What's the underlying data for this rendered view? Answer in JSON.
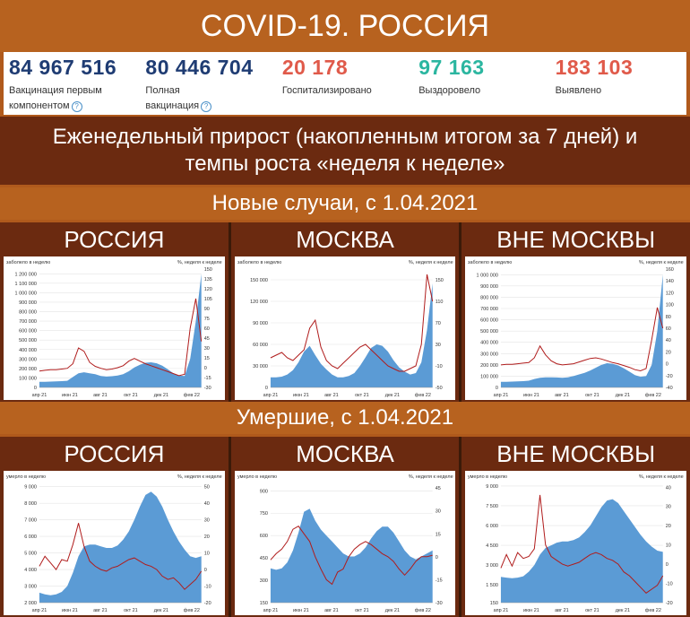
{
  "header": {
    "title": "COVID-19. РОССИЯ"
  },
  "stats": [
    {
      "value": "84 967 516",
      "label1": "Вакцинация первым",
      "label2": "компонентом",
      "help": true,
      "color": "#1f3c73"
    },
    {
      "value": "80 446 704",
      "label1": "Полная",
      "label2": "вакцинация",
      "help": true,
      "color": "#1f3c73"
    },
    {
      "value": "20 178",
      "label1": "Госпитализировано",
      "label2": "",
      "help": false,
      "color": "#e05a4a"
    },
    {
      "value": "97 163",
      "label1": "Выздоровело",
      "label2": "",
      "help": false,
      "color": "#2bb6a0"
    },
    {
      "value": "183 103",
      "label1": "Выявлено",
      "label2": "",
      "help": false,
      "color": "#e05a4a"
    }
  ],
  "weekly_title": "Еженедельный прирост (накопленным итогом за 7 дней) и темпы роста «неделя к неделе»",
  "section_cases": "Новые случаи, с 1.04.2021",
  "section_deaths": "Умершие, с 1.04.2021",
  "regions": [
    "РОССИЯ",
    "МОСКВА",
    "ВНЕ МОСКВЫ"
  ],
  "months": [
    "апр 21",
    "июн 21",
    "авг 21",
    "окт 21",
    "дек 21",
    "фев 22"
  ],
  "right_label": "%, неделя к неделе",
  "colors": {
    "area": "#5b9bd5",
    "line": "#b01c1c"
  },
  "chart_data": [
    {
      "type": "area",
      "title": "РОССИЯ — новые случаи",
      "ylabel": "заболело в неделю",
      "y2label": "%, неделя к неделе",
      "yticks": [
        "0",
        "100 000",
        "200 000",
        "300 000",
        "400 000",
        "500 000",
        "600 000",
        "700 000",
        "800 000",
        "900 000",
        "1 000 000",
        "1 100 000",
        "1 200 000"
      ],
      "ylim": [
        0,
        1250000
      ],
      "y2ticks": [
        "-30",
        "-15",
        "0",
        "15",
        "30",
        "45",
        "60",
        "75",
        "90",
        "105",
        "120",
        "135",
        "150"
      ],
      "y2lim": [
        -30,
        150
      ],
      "area": [
        60000,
        60000,
        62000,
        64000,
        66000,
        70000,
        110000,
        150000,
        160000,
        150000,
        140000,
        120000,
        115000,
        118000,
        125000,
        140000,
        170000,
        210000,
        240000,
        260000,
        265000,
        255000,
        230000,
        190000,
        150000,
        125000,
        120000,
        300000,
        700000,
        1200000
      ],
      "line": [
        -5,
        -4,
        -3,
        -3,
        -2,
        -1,
        6,
        30,
        25,
        8,
        2,
        -1,
        -3,
        -2,
        0,
        3,
        10,
        14,
        10,
        6,
        3,
        0,
        -3,
        -6,
        -9,
        -12,
        -10,
        60,
        105,
        40
      ]
    },
    {
      "type": "area",
      "title": "МОСКВА — новые случаи",
      "ylabel": "заболело в неделю",
      "y2label": "%, неделя к неделе",
      "yticks": [
        "0",
        "30 000",
        "60 000",
        "90 000",
        "120 000",
        "150 000"
      ],
      "ylim": [
        0,
        165000
      ],
      "y2ticks": [
        "-50",
        "-10",
        "30",
        "70",
        "110",
        "150"
      ],
      "y2lim": [
        -50,
        170
      ],
      "area": [
        14000,
        14000,
        15000,
        18000,
        24000,
        35000,
        50000,
        58000,
        45000,
        33000,
        25000,
        18000,
        14000,
        14000,
        16000,
        20000,
        30000,
        42000,
        55000,
        60000,
        58000,
        50000,
        38000,
        28000,
        22000,
        18000,
        20000,
        35000,
        80000,
        145000
      ],
      "line": [
        5,
        10,
        15,
        5,
        0,
        10,
        20,
        60,
        75,
        25,
        0,
        -10,
        -15,
        -5,
        5,
        15,
        25,
        30,
        20,
        10,
        0,
        -10,
        -15,
        -20,
        -20,
        -15,
        -10,
        30,
        160,
        110
      ]
    },
    {
      "type": "area",
      "title": "ВНЕ МОСКВЫ — новые случаи",
      "ylabel": "заболело в неделю",
      "y2label": "%, неделя к неделе",
      "yticks": [
        "0",
        "100 000",
        "200 000",
        "300 000",
        "400 000",
        "500 000",
        "600 000",
        "700 000",
        "800 000",
        "900 000",
        "1 000 000"
      ],
      "ylim": [
        0,
        1050000
      ],
      "y2ticks": [
        "-40",
        "-20",
        "0",
        "20",
        "40",
        "60",
        "80",
        "100",
        "120",
        "140",
        "160"
      ],
      "y2lim": [
        -40,
        160
      ],
      "area": [
        50000,
        50000,
        52000,
        54000,
        56000,
        60000,
        75000,
        85000,
        90000,
        90000,
        88000,
        85000,
        90000,
        100000,
        115000,
        130000,
        150000,
        175000,
        200000,
        215000,
        210000,
        195000,
        170000,
        140000,
        110000,
        95000,
        100000,
        200000,
        500000,
        1000000
      ],
      "line": [
        -2,
        -1,
        -1,
        0,
        1,
        2,
        10,
        30,
        15,
        5,
        0,
        -2,
        -1,
        0,
        3,
        6,
        9,
        10,
        8,
        5,
        2,
        0,
        -3,
        -6,
        -10,
        -12,
        -8,
        40,
        95,
        60
      ]
    },
    {
      "type": "area",
      "title": "РОССИЯ — умершие",
      "ylabel": "умерло в неделю",
      "y2label": "%, неделя к неделе",
      "yticks": [
        "2 000",
        "3 000",
        "4 000",
        "5 000",
        "6 000",
        "7 000",
        "8 000",
        "9 000"
      ],
      "ylim": [
        2000,
        9200
      ],
      "y2ticks": [
        "-20",
        "-10",
        "0",
        "10",
        "20",
        "30",
        "40",
        "50"
      ],
      "y2lim": [
        -20,
        52
      ],
      "area": [
        2600,
        2500,
        2450,
        2500,
        2650,
        3000,
        3800,
        4800,
        5400,
        5500,
        5500,
        5400,
        5300,
        5300,
        5450,
        5800,
        6300,
        7000,
        7800,
        8500,
        8700,
        8400,
        7800,
        7000,
        6300,
        5700,
        5200,
        4800,
        4700,
        4800
      ],
      "line": [
        2,
        8,
        4,
        0,
        6,
        5,
        15,
        28,
        14,
        5,
        2,
        0,
        -1,
        1,
        2,
        4,
        6,
        7,
        5,
        3,
        2,
        0,
        -4,
        -6,
        -5,
        -8,
        -12,
        -9,
        -6,
        -1
      ]
    },
    {
      "type": "area",
      "title": "МОСКВА — умершие",
      "ylabel": "умерло в неделю",
      "y2label": "%, неделя к неделе",
      "yticks": [
        "150",
        "300",
        "450",
        "600",
        "750",
        "900"
      ],
      "ylim": [
        150,
        950
      ],
      "y2ticks": [
        "-30",
        "-15",
        "0",
        "15",
        "30",
        "45"
      ],
      "y2lim": [
        -30,
        48
      ],
      "area": [
        380,
        370,
        380,
        420,
        500,
        620,
        760,
        780,
        700,
        640,
        600,
        560,
        520,
        480,
        460,
        460,
        480,
        520,
        580,
        630,
        660,
        660,
        620,
        560,
        500,
        460,
        440,
        460,
        480,
        500
      ],
      "line": [
        -2,
        2,
        5,
        10,
        18,
        20,
        15,
        10,
        0,
        -8,
        -15,
        -18,
        -10,
        -8,
        0,
        5,
        8,
        10,
        8,
        5,
        2,
        0,
        -3,
        -8,
        -12,
        -8,
        -3,
        0,
        0,
        1
      ]
    },
    {
      "type": "area",
      "title": "ВНЕ МОСКВЫ — умершие",
      "ylabel": "умерло в неделю",
      "y2label": "%, неделя к неделе",
      "yticks": [
        "150",
        "1 500",
        "3 000",
        "4 500",
        "6 000",
        "7 500",
        "9 000"
      ],
      "ylim": [
        150,
        9200
      ],
      "y2ticks": [
        "-20",
        "-10",
        "0",
        "10",
        "20",
        "30",
        "40"
      ],
      "y2lim": [
        -20,
        42
      ],
      "area": [
        2100,
        2050,
        2000,
        2050,
        2150,
        2500,
        3000,
        3800,
        4300,
        4500,
        4700,
        4800,
        4800,
        4900,
        5100,
        5500,
        6000,
        6700,
        7400,
        7900,
        8000,
        7700,
        7100,
        6500,
        5900,
        5300,
        4800,
        4400,
        4100,
        4000
      ],
      "line": [
        -2,
        5,
        -1,
        6,
        3,
        4,
        8,
        36,
        10,
        4,
        2,
        0,
        -1,
        0,
        1,
        3,
        5,
        6,
        5,
        3,
        2,
        0,
        -4,
        -6,
        -9,
        -12,
        -15,
        -13,
        -11,
        -6
      ]
    }
  ]
}
